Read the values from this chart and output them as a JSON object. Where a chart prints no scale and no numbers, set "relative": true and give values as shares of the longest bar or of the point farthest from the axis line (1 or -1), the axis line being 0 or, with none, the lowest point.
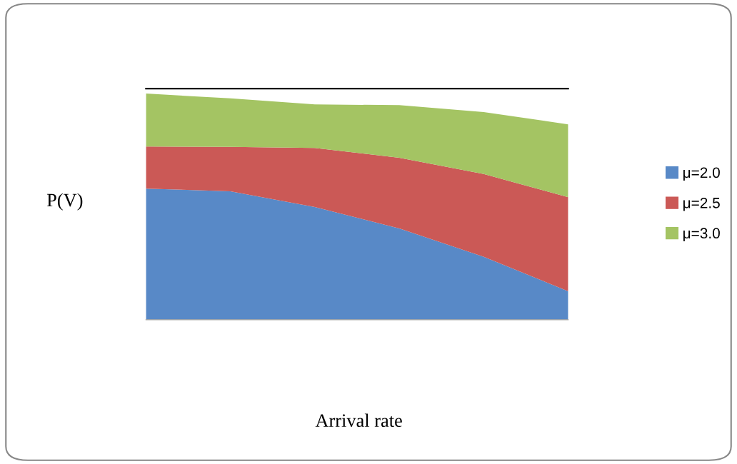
{
  "chart_data": {
    "type": "area",
    "stacked": true,
    "relative": true,
    "ylabel": "P(V)",
    "xlabel": "Arrival rate",
    "categories": [
      null,
      null,
      null,
      null,
      null,
      null
    ],
    "legend": "right",
    "series": [
      {
        "name": "μ=2.0",
        "color": "#5889c7",
        "values": [
          0.58,
          0.568,
          0.498,
          0.404,
          0.278,
          0.126
        ]
      },
      {
        "name": "μ=2.5",
        "color": "#cb5956",
        "values": [
          0.186,
          0.196,
          0.262,
          0.312,
          0.366,
          0.416
        ]
      },
      {
        "name": "μ=3.0",
        "color": "#a4c463",
        "values": [
          0.234,
          0.215,
          0.192,
          0.233,
          0.274,
          0.322
        ]
      }
    ]
  }
}
